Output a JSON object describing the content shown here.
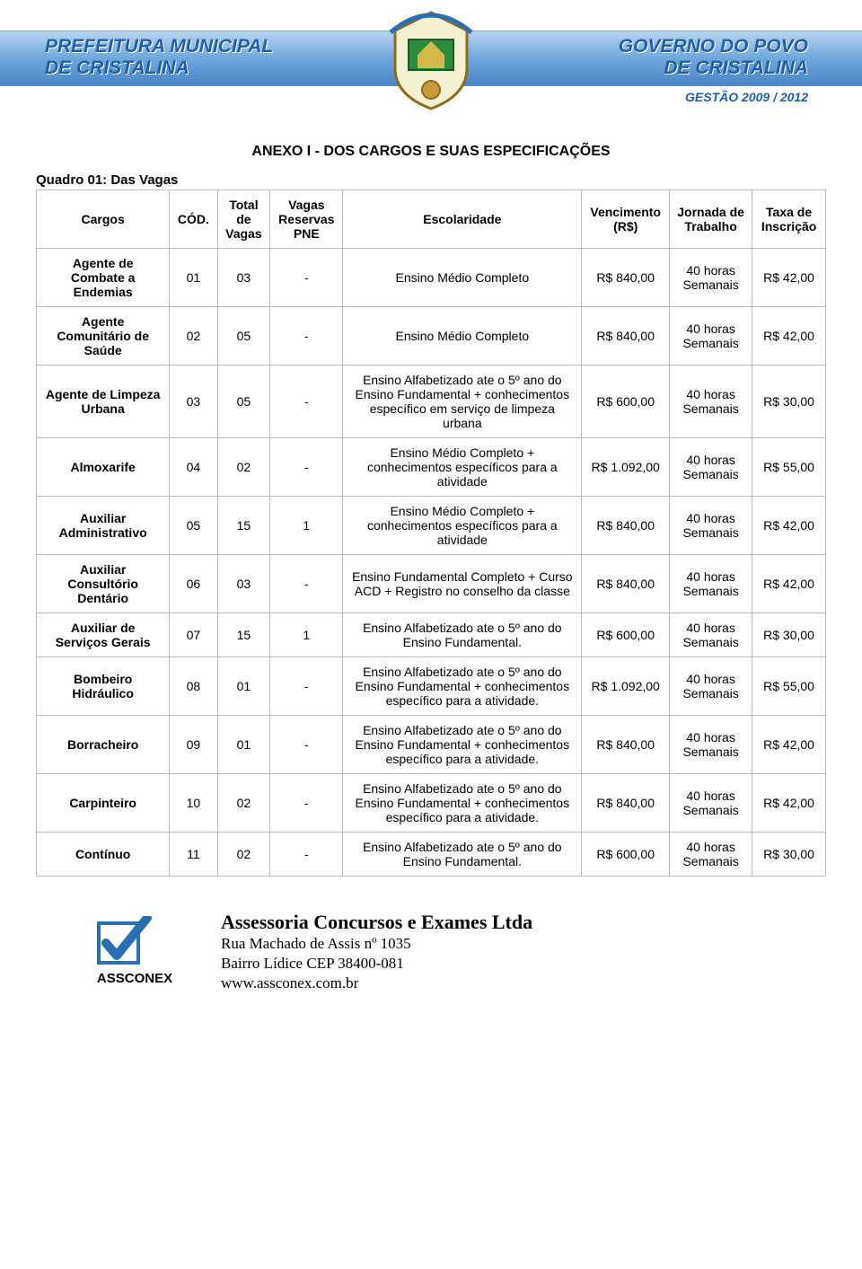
{
  "banner": {
    "left_line1": "PREFEITURA MUNICIPAL",
    "left_line2": "DE CRISTALINA",
    "right_line1": "GOVERNO DO POVO",
    "right_line2": "DE CRISTALINA",
    "gestao": "GESTÃO 2009 / 2012",
    "colors": {
      "gradient_top": "#b8d4f0",
      "gradient_mid": "#6fa8dc",
      "gradient_bot": "#4a86c8",
      "text": "#1f5fa8"
    }
  },
  "titles": {
    "anexo": "ANEXO I - DOS CARGOS E SUAS ESPECIFICAÇÕES",
    "quadro": "Quadro 01: Das Vagas"
  },
  "table": {
    "border_color": "#bbbbbb",
    "font_size": 14,
    "headers": {
      "cargos": "Cargos",
      "cod": "CÓD.",
      "total": "Total de Vagas",
      "reservas": "Vagas Reservas PNE",
      "escolaridade": "Escolaridade",
      "vencimento": "Vencimento (R$)",
      "jornada": "Jornada de Trabalho",
      "taxa": "Taxa de Inscrição"
    },
    "rows": [
      {
        "cargo": "Agente de Combate a Endemias",
        "cod": "01",
        "total": "03",
        "reservas": "-",
        "escolaridade": "Ensino Médio Completo",
        "vencimento": "R$ 840,00",
        "jornada": "40 horas Semanais",
        "taxa": "R$ 42,00"
      },
      {
        "cargo": "Agente Comunitário de Saúde",
        "cod": "02",
        "total": "05",
        "reservas": "-",
        "escolaridade": "Ensino Médio Completo",
        "vencimento": "R$ 840,00",
        "jornada": "40 horas Semanais",
        "taxa": "R$ 42,00"
      },
      {
        "cargo": "Agente de Limpeza Urbana",
        "cod": "03",
        "total": "05",
        "reservas": "-",
        "escolaridade": "Ensino Alfabetizado ate o 5º ano do Ensino Fundamental + conhecimentos específico em serviço de limpeza urbana",
        "vencimento": "R$ 600,00",
        "jornada": "40 horas Semanais",
        "taxa": "R$ 30,00"
      },
      {
        "cargo": "Almoxarife",
        "cod": "04",
        "total": "02",
        "reservas": "-",
        "escolaridade": "Ensino Médio Completo + conhecimentos específicos para a atividade",
        "vencimento": "R$ 1.092,00",
        "jornada": "40 horas Semanais",
        "taxa": "R$ 55,00"
      },
      {
        "cargo": "Auxiliar Administrativo",
        "cod": "05",
        "total": "15",
        "reservas": "1",
        "escolaridade": "Ensino Médio Completo + conhecimentos específicos para a atividade",
        "vencimento": "R$ 840,00",
        "jornada": "40 horas Semanais",
        "taxa": "R$ 42,00"
      },
      {
        "cargo": "Auxiliar Consultório Dentário",
        "cod": "06",
        "total": "03",
        "reservas": "-",
        "escolaridade": "Ensino Fundamental Completo + Curso ACD + Registro no conselho da classe",
        "vencimento": "R$ 840,00",
        "jornada": "40 horas Semanais",
        "taxa": "R$ 42,00"
      },
      {
        "cargo": "Auxiliar de Serviços Gerais",
        "cod": "07",
        "total": "15",
        "reservas": "1",
        "escolaridade": "Ensino Alfabetizado ate o 5º ano do Ensino Fundamental.",
        "vencimento": "R$ 600,00",
        "jornada": "40 horas Semanais",
        "taxa": "R$ 30,00"
      },
      {
        "cargo": "Bombeiro Hidráulico",
        "cod": "08",
        "total": "01",
        "reservas": "-",
        "escolaridade": "Ensino Alfabetizado ate o 5º ano do Ensino Fundamental + conhecimentos específico para a atividade.",
        "vencimento": "R$ 1.092,00",
        "jornada": "40 horas Semanais",
        "taxa": "R$ 55,00"
      },
      {
        "cargo": "Borracheiro",
        "cod": "09",
        "total": "01",
        "reservas": "-",
        "escolaridade": "Ensino Alfabetizado ate o 5º ano do Ensino Fundamental + conhecimentos específico para a atividade.",
        "vencimento": "R$ 840,00",
        "jornada": "40 horas Semanais",
        "taxa": "R$ 42,00"
      },
      {
        "cargo": "Carpinteiro",
        "cod": "10",
        "total": "02",
        "reservas": "-",
        "escolaridade": "Ensino Alfabetizado ate o 5º ano do Ensino Fundamental + conhecimentos específico para a atividade.",
        "vencimento": "R$ 840,00",
        "jornada": "40 horas Semanais",
        "taxa": "R$ 42,00"
      },
      {
        "cargo": "Contínuo",
        "cod": "11",
        "total": "02",
        "reservas": "-",
        "escolaridade": "Ensino Alfabetizado ate o 5º ano do Ensino Fundamental.",
        "vencimento": "R$ 600,00",
        "jornada": "40 horas Semanais",
        "taxa": "R$ 30,00"
      }
    ]
  },
  "footer": {
    "company": "Assessoria Concursos e Exames Ltda",
    "addr1": "Rua Machado de Assis nº 1035",
    "addr2": "Bairro Lídice CEP 38400-081",
    "site": "www.assconex.com.br",
    "logo_text": "ASSCONEX",
    "logo_colors": {
      "check": "#2b6fb3",
      "text": "#000000"
    }
  }
}
